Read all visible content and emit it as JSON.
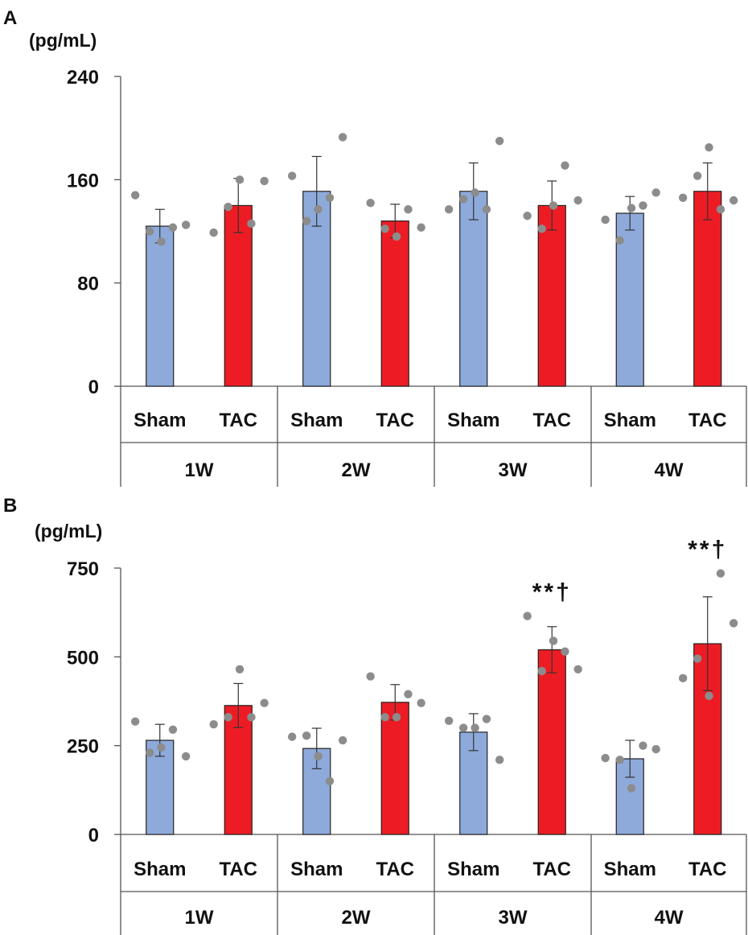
{
  "chart_data": [
    {
      "type": "bar",
      "panel_label": "A",
      "ylabel": "(pg/mL)",
      "ylim": [
        0,
        240
      ],
      "yticks": [
        0,
        80,
        160,
        240
      ],
      "groups": [
        "1W",
        "2W",
        "3W",
        "4W"
      ],
      "conditions": [
        "Sham",
        "TAC"
      ],
      "series": [
        {
          "name": "Sham",
          "color": "#8eaadb",
          "values": [
            124,
            151,
            151,
            134
          ],
          "errors": [
            13,
            27,
            22,
            13
          ],
          "points": [
            [
              148,
              120,
              112,
              123,
              125
            ],
            [
              163,
              128,
              137,
              146,
              193
            ],
            [
              137,
              145,
              150,
              137,
              190
            ],
            [
              129,
              113,
              138,
              140,
              150
            ]
          ]
        },
        {
          "name": "TAC",
          "color": "#ed1c24",
          "values": [
            140,
            128,
            140,
            151
          ],
          "errors": [
            21,
            13,
            19,
            22
          ],
          "points": [
            [
              119,
              139,
              160,
              126,
              159
            ],
            [
              142,
              122,
              116,
              137,
              123
            ],
            [
              132,
              122,
              140,
              171,
              144
            ],
            [
              146,
              163,
              185,
              137,
              144
            ]
          ]
        }
      ],
      "annotations": []
    },
    {
      "type": "bar",
      "panel_label": "B",
      "ylabel": "(pg/mL)",
      "ylim": [
        0,
        750
      ],
      "yticks": [
        0,
        250,
        500,
        750
      ],
      "groups": [
        "1W",
        "2W",
        "3W",
        "4W"
      ],
      "conditions": [
        "Sham",
        "TAC"
      ],
      "series": [
        {
          "name": "Sham",
          "color": "#8eaadb",
          "values": [
            265,
            242,
            288,
            213
          ],
          "errors": [
            45,
            57,
            52,
            52
          ],
          "points": [
            [
              318,
              230,
              245,
              295,
              220
            ],
            [
              275,
              278,
              220,
              150,
              265
            ],
            [
              320,
              300,
              300,
              325,
              210
            ],
            [
              215,
              210,
              130,
              250,
              240
            ]
          ]
        },
        {
          "name": "TAC",
          "color": "#ed1c24",
          "values": [
            363,
            372,
            520,
            537
          ],
          "errors": [
            62,
            50,
            65,
            132
          ],
          "points": [
            [
              310,
              330,
              465,
              330,
              370
            ],
            [
              445,
              330,
              330,
              395,
              370
            ],
            [
              615,
              460,
              545,
              515,
              465
            ],
            [
              440,
              495,
              390,
              735,
              595
            ]
          ]
        }
      ],
      "annotations": [
        {
          "group": "3W",
          "condition": "TAC",
          "text": "**†"
        },
        {
          "group": "4W",
          "condition": "TAC",
          "text": "**†"
        }
      ]
    }
  ]
}
